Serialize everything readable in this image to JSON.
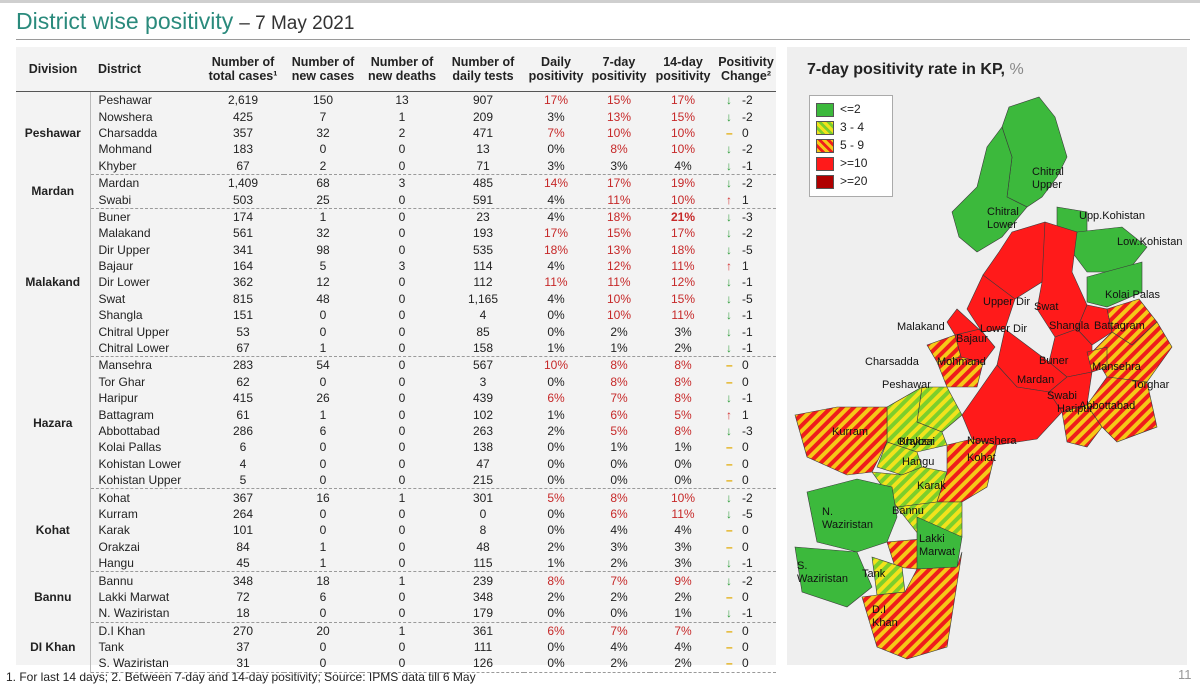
{
  "title": "District wise positivity",
  "date": "– 7 May 2021",
  "table": {
    "headers": [
      "Division",
      "District",
      "Number of total cases¹",
      "Number of new cases",
      "Number of new deaths",
      "Number of daily tests",
      "Daily positivity",
      "7-day positivity",
      "14-day positivity",
      "Positivity Change²"
    ],
    "groups": [
      {
        "division": "Peshawar",
        "rows": [
          [
            "Peshawar",
            "2,619",
            "150",
            "13",
            "907",
            "17%",
            "15%",
            "17%",
            "down",
            "-2"
          ],
          [
            "Nowshera",
            "425",
            "7",
            "1",
            "209",
            "3%",
            "13%",
            "15%",
            "down",
            "-2"
          ],
          [
            "Charsadda",
            "357",
            "32",
            "2",
            "471",
            "7%",
            "10%",
            "10%",
            "flat",
            "0"
          ],
          [
            "Mohmand",
            "183",
            "0",
            "0",
            "13",
            "0%",
            "8%",
            "10%",
            "down",
            "-2"
          ],
          [
            "Khyber",
            "67",
            "2",
            "0",
            "71",
            "3%",
            "3%",
            "4%",
            "down",
            "-1"
          ]
        ]
      },
      {
        "division": "Mardan",
        "rows": [
          [
            "Mardan",
            "1,409",
            "68",
            "3",
            "485",
            "14%",
            "17%",
            "19%",
            "down",
            "-2"
          ],
          [
            "Swabi",
            "503",
            "25",
            "0",
            "591",
            "4%",
            "11%",
            "10%",
            "up",
            "1"
          ]
        ]
      },
      {
        "division": "Malakand",
        "rows": [
          [
            "Buner",
            "174",
            "1",
            "0",
            "23",
            "4%",
            "18%",
            "21%",
            "down",
            "-3"
          ],
          [
            "Malakand",
            "561",
            "32",
            "0",
            "193",
            "17%",
            "15%",
            "17%",
            "down",
            "-2"
          ],
          [
            "Dir Upper",
            "341",
            "98",
            "0",
            "535",
            "18%",
            "13%",
            "18%",
            "down",
            "-5"
          ],
          [
            "Bajaur",
            "164",
            "5",
            "3",
            "114",
            "4%",
            "12%",
            "11%",
            "up",
            "1"
          ],
          [
            "Dir Lower",
            "362",
            "12",
            "0",
            "112",
            "11%",
            "11%",
            "12%",
            "down",
            "-1"
          ],
          [
            "Swat",
            "815",
            "48",
            "0",
            "1,165",
            "4%",
            "10%",
            "15%",
            "down",
            "-5"
          ],
          [
            "Shangla",
            "151",
            "0",
            "0",
            "4",
            "0%",
            "10%",
            "11%",
            "down",
            "-1"
          ],
          [
            "Chitral Upper",
            "53",
            "0",
            "0",
            "85",
            "0%",
            "2%",
            "3%",
            "down",
            "-1"
          ],
          [
            "Chitral Lower",
            "67",
            "1",
            "0",
            "158",
            "1%",
            "1%",
            "2%",
            "down",
            "-1"
          ]
        ]
      },
      {
        "division": "Hazara",
        "rows": [
          [
            "Mansehra",
            "283",
            "54",
            "0",
            "567",
            "10%",
            "8%",
            "8%",
            "flat",
            "0"
          ],
          [
            "Tor Ghar",
            "62",
            "0",
            "0",
            "3",
            "0%",
            "8%",
            "8%",
            "flat",
            "0"
          ],
          [
            "Haripur",
            "415",
            "26",
            "0",
            "439",
            "6%",
            "7%",
            "8%",
            "down",
            "-1"
          ],
          [
            "Battagram",
            "61",
            "1",
            "0",
            "102",
            "1%",
            "6%",
            "5%",
            "up",
            "1"
          ],
          [
            "Abbottabad",
            "286",
            "6",
            "0",
            "263",
            "2%",
            "5%",
            "8%",
            "down",
            "-3"
          ],
          [
            "Kolai Pallas",
            "6",
            "0",
            "0",
            "138",
            "0%",
            "1%",
            "1%",
            "flat",
            "0"
          ],
          [
            "Kohistan Lower",
            "4",
            "0",
            "0",
            "47",
            "0%",
            "0%",
            "0%",
            "flat",
            "0"
          ],
          [
            "Kohistan Upper",
            "5",
            "0",
            "0",
            "215",
            "0%",
            "0%",
            "0%",
            "flat",
            "0"
          ]
        ]
      },
      {
        "division": "Kohat",
        "rows": [
          [
            "Kohat",
            "367",
            "16",
            "1",
            "301",
            "5%",
            "8%",
            "10%",
            "down",
            "-2"
          ],
          [
            "Kurram",
            "264",
            "0",
            "0",
            "0",
            "0%",
            "6%",
            "11%",
            "down",
            "-5"
          ],
          [
            "Karak",
            "101",
            "0",
            "0",
            "8",
            "0%",
            "4%",
            "4%",
            "flat",
            "0"
          ],
          [
            "Orakzai",
            "84",
            "1",
            "0",
            "48",
            "2%",
            "3%",
            "3%",
            "flat",
            "0"
          ],
          [
            "Hangu",
            "45",
            "1",
            "0",
            "115",
            "1%",
            "2%",
            "3%",
            "down",
            "-1"
          ]
        ]
      },
      {
        "division": "Bannu",
        "rows": [
          [
            "Bannu",
            "348",
            "18",
            "1",
            "239",
            "8%",
            "7%",
            "9%",
            "down",
            "-2"
          ],
          [
            "Lakki Marwat",
            "72",
            "6",
            "0",
            "348",
            "2%",
            "2%",
            "2%",
            "flat",
            "0"
          ],
          [
            "N. Waziristan",
            "18",
            "0",
            "0",
            "179",
            "0%",
            "0%",
            "1%",
            "down",
            "-1"
          ]
        ]
      },
      {
        "division": "DI Khan",
        "rows": [
          [
            "D.I Khan",
            "270",
            "20",
            "1",
            "361",
            "6%",
            "7%",
            "7%",
            "flat",
            "0"
          ],
          [
            "Tank",
            "37",
            "0",
            "0",
            "111",
            "0%",
            "4%",
            "4%",
            "flat",
            "0"
          ],
          [
            "S. Waziristan",
            "31",
            "0",
            "0",
            "126",
            "0%",
            "2%",
            "2%",
            "flat",
            "0"
          ]
        ]
      }
    ]
  },
  "map": {
    "title": "7-day positivity rate in KP,",
    "unit": "%",
    "legend": [
      {
        "label": "<=2",
        "color": "#3cb93c"
      },
      {
        "label": "3 - 4",
        "color": "hatch-yellow-green"
      },
      {
        "label": "5 - 9",
        "color": "hatch-yellow-red"
      },
      {
        "label": ">=10",
        "color": "#ff1a1a"
      },
      {
        "label": ">=20",
        "color": "#b00000"
      }
    ],
    "labels": [
      "Chitral Upper",
      "Chitral Lower",
      "Upp.Kohistan",
      "Low.Kohistan",
      "Kolai Palas",
      "Upper Dir",
      "Swat",
      "Malakand",
      "Lower Dir",
      "Shangla",
      "Battagram",
      "Bajaur",
      "Charsadda",
      "Mohmand",
      "Mansehra",
      "Buner",
      "Torghar",
      "Peshawar",
      "Mardan",
      "Swabi",
      "Khyber",
      "Nowshera",
      "Haripur",
      "Abbottabad",
      "Kurram",
      "Orakzai",
      "Hangu",
      "Kohat",
      "Karak",
      "N. Waziristan",
      "Bannu",
      "Lakki Marwat",
      "S. Waziristan",
      "Tank",
      "D.I Khan"
    ]
  },
  "footnote": "1. For last 14 days; 2. Between 7-day and 14-day positivity; Source: IPMS data till 6 May",
  "page_number": "11",
  "chart_data": {
    "type": "table",
    "title": "District wise positivity",
    "note": "Map category thresholds: <=2, 3 - 4, 5 - 9, >=10, >=20 (7-day positivity rate in KP, %)"
  }
}
